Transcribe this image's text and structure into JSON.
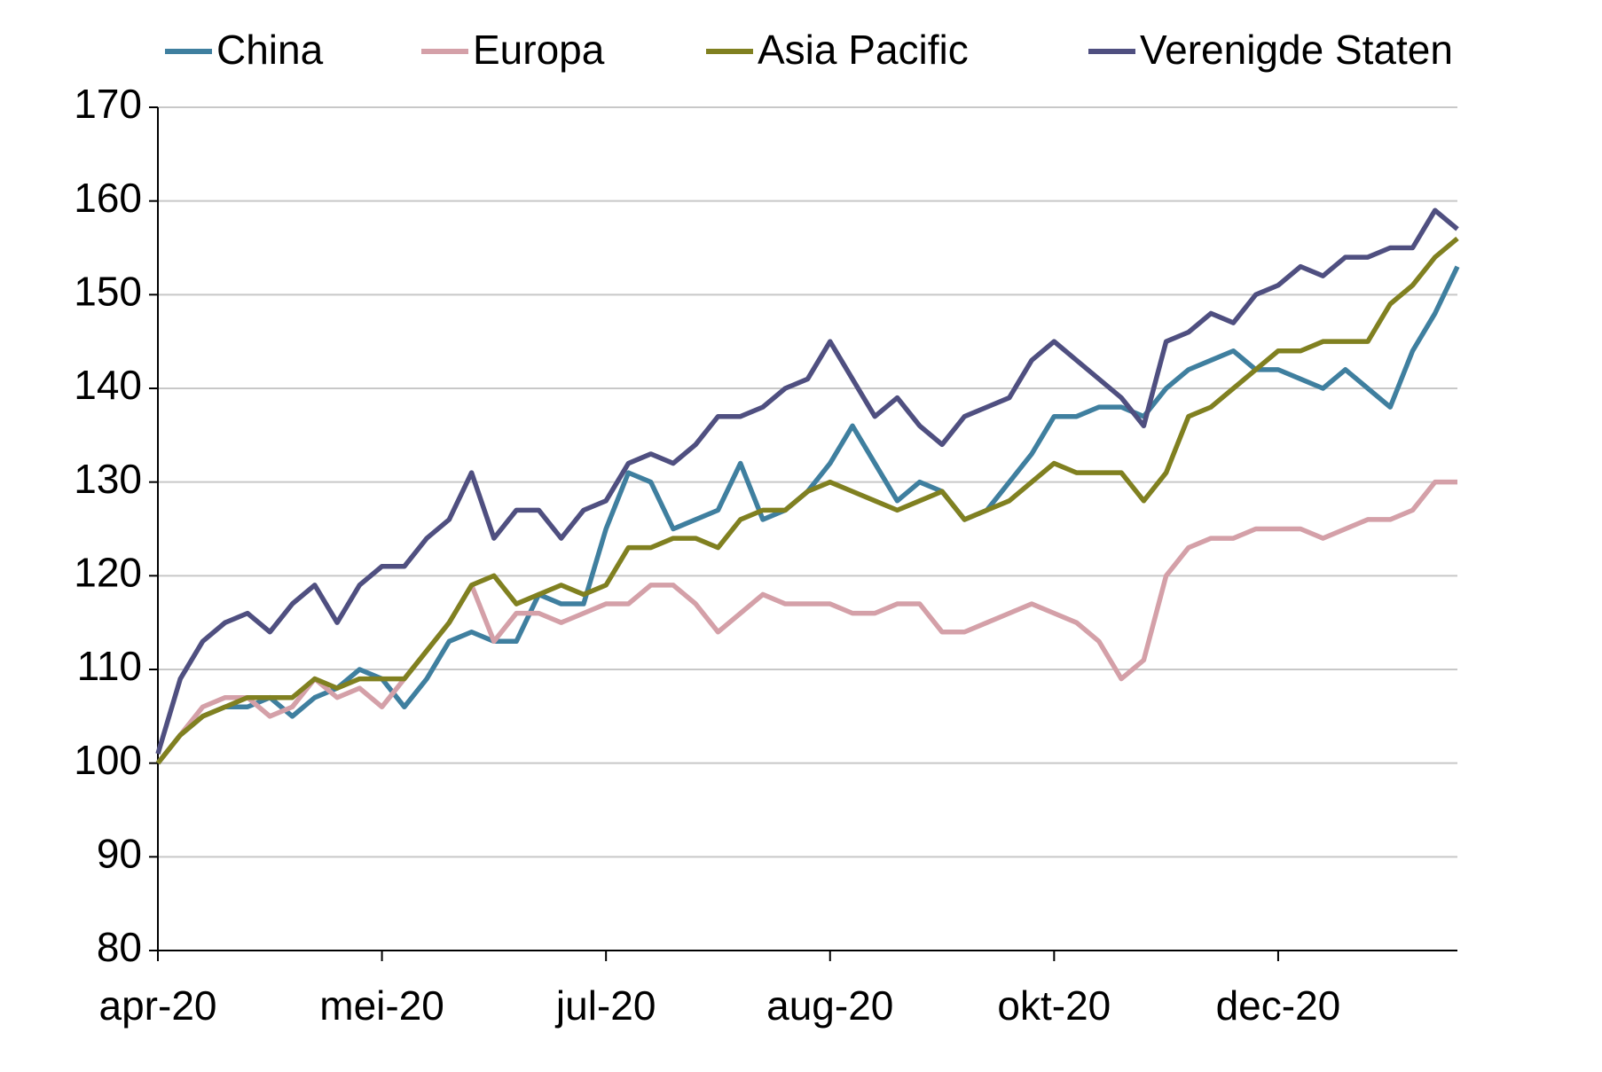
{
  "chart_data": {
    "type": "line",
    "categories": [
      "apr-20",
      null,
      null,
      null,
      null,
      null,
      null,
      null,
      null,
      null,
      "mei-20",
      null,
      null,
      null,
      null,
      null,
      null,
      null,
      null,
      null,
      "jul-20",
      null,
      null,
      null,
      null,
      null,
      null,
      null,
      null,
      null,
      "aug-20",
      null,
      null,
      null,
      null,
      null,
      null,
      null,
      null,
      null,
      "okt-20",
      null,
      null,
      null,
      null,
      null,
      null,
      null,
      null,
      null,
      "dec-20",
      null,
      null,
      null,
      null,
      null,
      null,
      null,
      null
    ],
    "series": [
      {
        "name": "China",
        "color": "#3f7f9f",
        "values": [
          100,
          103,
          105,
          106,
          106,
          107,
          105,
          107,
          108,
          110,
          109,
          106,
          109,
          113,
          114,
          113,
          113,
          118,
          117,
          117,
          125,
          131,
          130,
          125,
          126,
          127,
          132,
          126,
          127,
          129,
          132,
          136,
          132,
          128,
          130,
          129,
          126,
          127,
          130,
          133,
          137,
          137,
          138,
          138,
          137,
          140,
          142,
          143,
          144,
          142,
          142,
          141,
          140,
          142,
          140,
          138,
          144,
          148,
          153
        ]
      },
      {
        "name": "Europa",
        "color": "#d4a0a8",
        "values": [
          100,
          103,
          106,
          107,
          107,
          105,
          106,
          109,
          107,
          108,
          106,
          109,
          112,
          115,
          119,
          113,
          116,
          116,
          115,
          116,
          117,
          117,
          119,
          119,
          117,
          114,
          116,
          118,
          117,
          117,
          117,
          116,
          116,
          117,
          117,
          114,
          114,
          115,
          116,
          117,
          116,
          115,
          113,
          109,
          111,
          120,
          123,
          124,
          124,
          125,
          125,
          125,
          124,
          125,
          126,
          126,
          127,
          130,
          130
        ]
      },
      {
        "name": "Asia Pacific",
        "color": "#808020",
        "values": [
          100,
          103,
          105,
          106,
          107,
          107,
          107,
          109,
          108,
          109,
          109,
          109,
          112,
          115,
          119,
          120,
          117,
          118,
          119,
          118,
          119,
          123,
          123,
          124,
          124,
          123,
          126,
          127,
          127,
          129,
          130,
          129,
          128,
          127,
          128,
          129,
          126,
          127,
          128,
          130,
          132,
          131,
          131,
          131,
          128,
          131,
          137,
          138,
          140,
          142,
          144,
          144,
          145,
          145,
          145,
          149,
          151,
          154,
          156
        ]
      },
      {
        "name": "Verenigde Staten",
        "color": "#4f4f80",
        "values": [
          101,
          109,
          113,
          115,
          116,
          114,
          117,
          119,
          115,
          119,
          121,
          121,
          124,
          126,
          131,
          124,
          127,
          127,
          124,
          127,
          128,
          132,
          133,
          132,
          134,
          137,
          137,
          138,
          140,
          141,
          145,
          141,
          137,
          139,
          136,
          134,
          137,
          138,
          139,
          143,
          145,
          143,
          141,
          139,
          136,
          145,
          146,
          148,
          147,
          150,
          151,
          153,
          152,
          154,
          154,
          155,
          155,
          159,
          157
        ]
      }
    ],
    "ylim": [
      80,
      170
    ],
    "yticks": [
      80,
      90,
      100,
      110,
      120,
      130,
      140,
      150,
      160,
      170
    ],
    "grid": true,
    "legend": "top"
  }
}
